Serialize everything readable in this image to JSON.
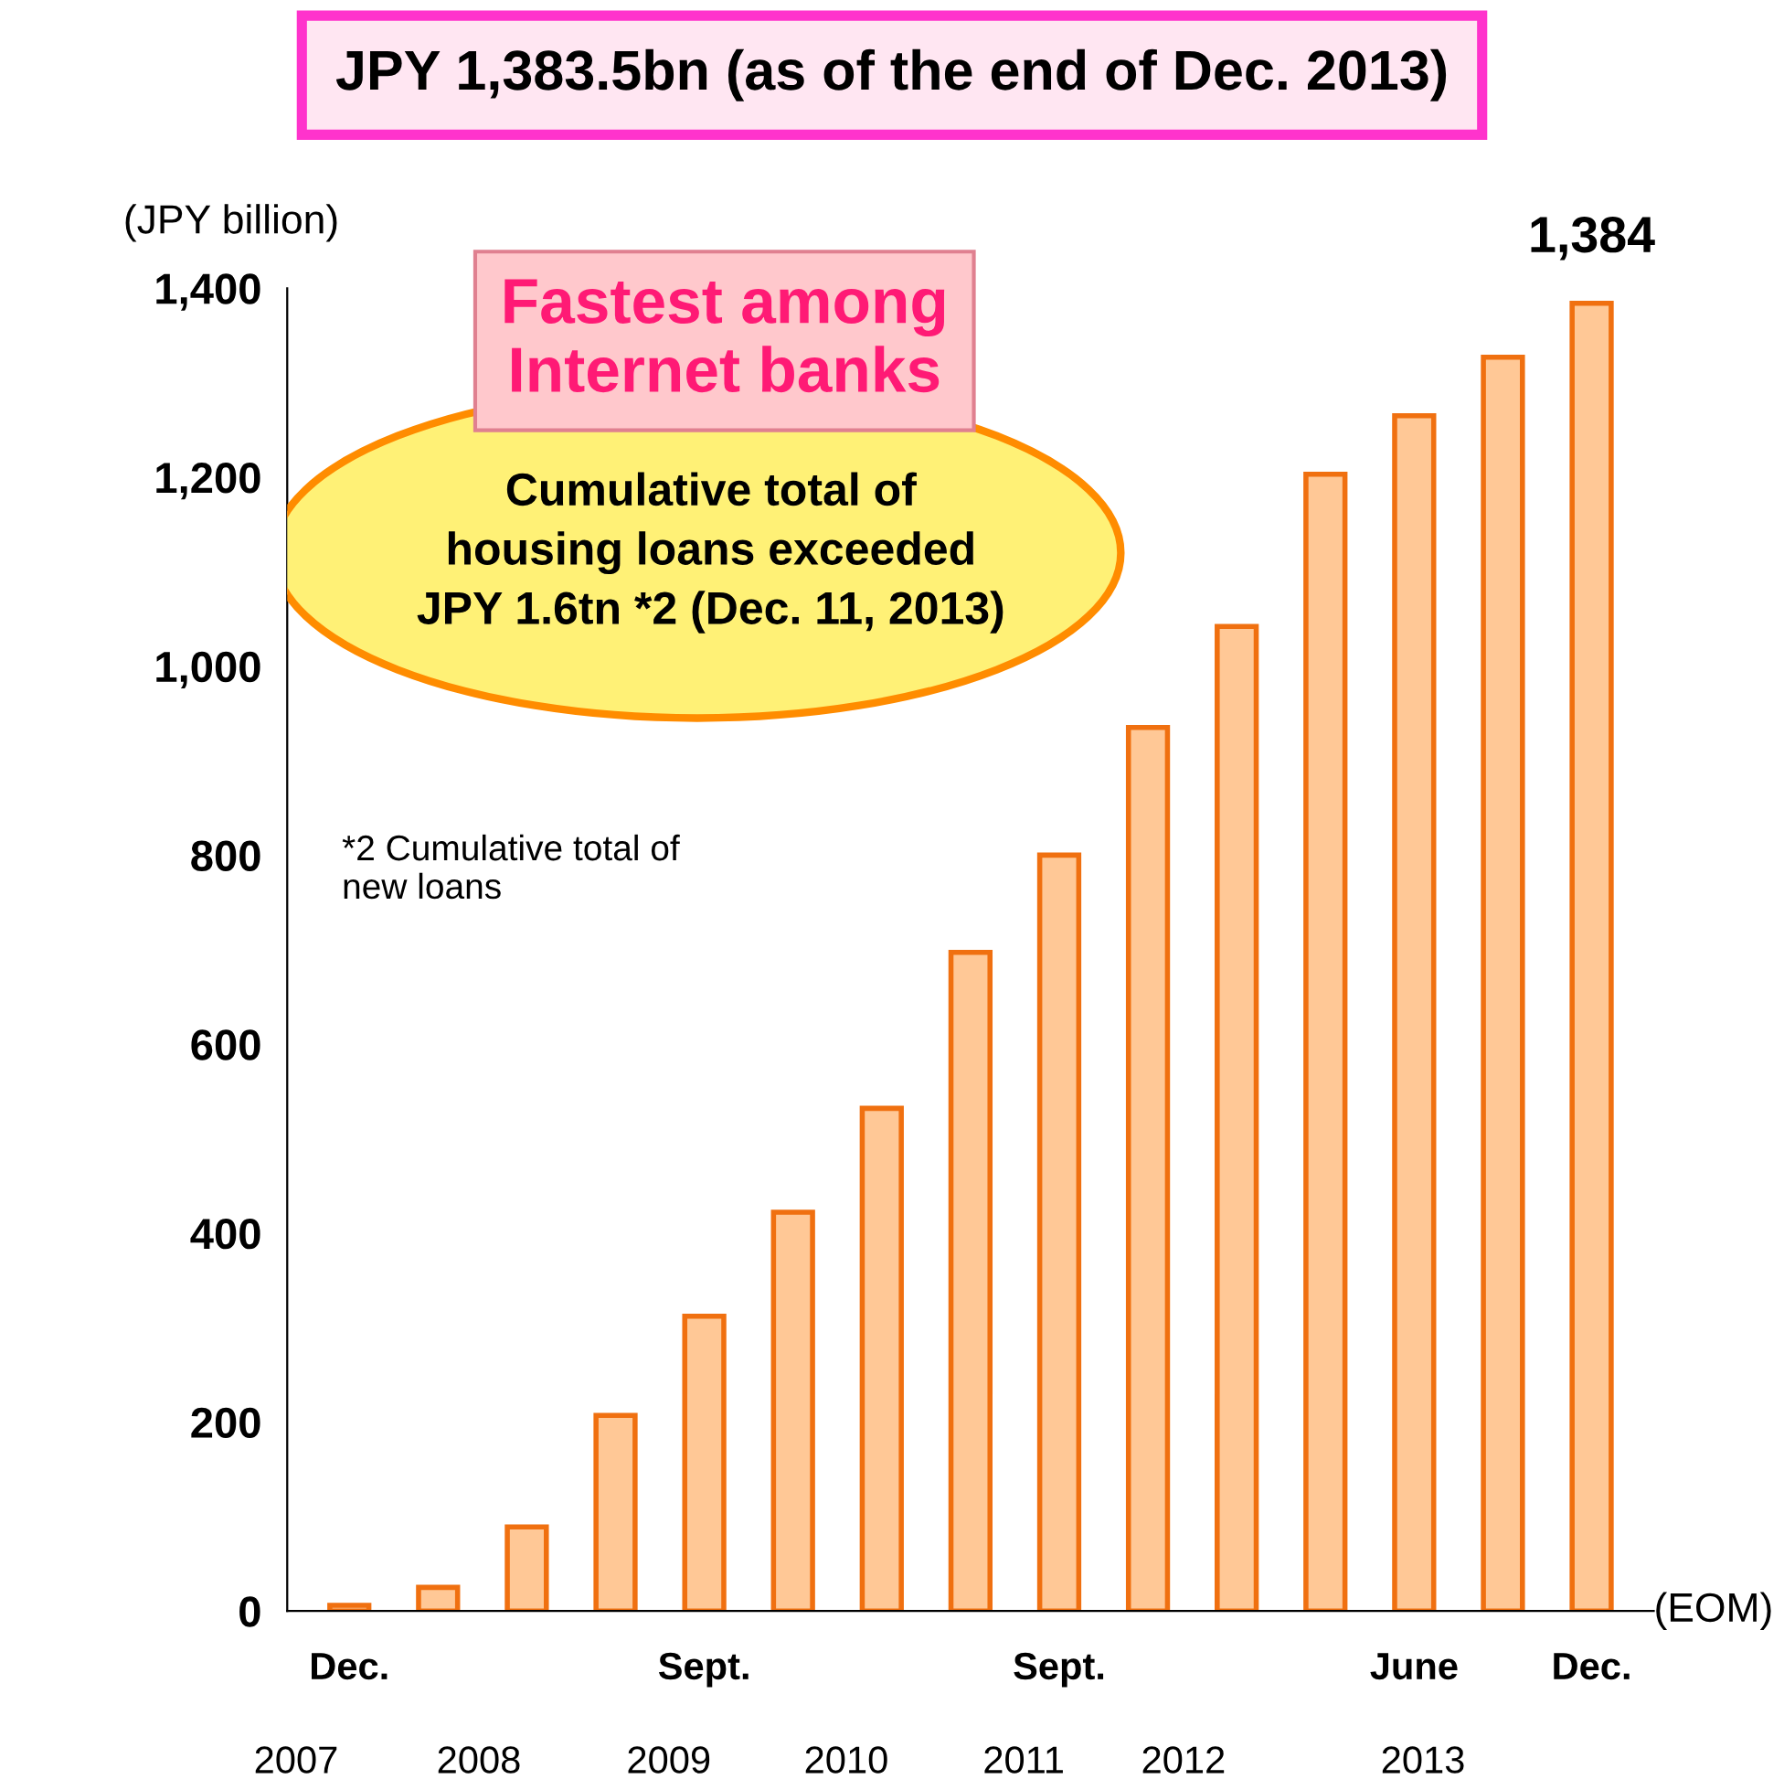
{
  "chart_data": {
    "type": "bar",
    "title": "JPY 1,383.5bn (as of the end of Dec. 2013)",
    "ylabel": "(JPY billion)",
    "xlabel": "(EOM)",
    "categories": [
      "Dec.",
      null,
      null,
      null,
      "Sept.",
      null,
      null,
      null,
      "Sept.",
      null,
      null,
      null,
      "June",
      null,
      "Dec."
    ],
    "values": [
      6,
      25,
      89,
      207,
      312,
      422,
      532,
      697,
      800,
      935,
      1042,
      1203,
      1265,
      1327,
      1384
    ],
    "value_labels": [
      null,
      null,
      null,
      null,
      null,
      null,
      null,
      null,
      null,
      null,
      null,
      null,
      null,
      null,
      "1,384"
    ],
    "color": "#ffc896",
    "ylim": [
      0,
      1400
    ],
    "yticks": [
      {
        "value": 0,
        "label": "0"
      },
      {
        "value": 200,
        "label": "200"
      },
      {
        "value": 400,
        "label": "400"
      },
      {
        "value": 600,
        "label": "600"
      },
      {
        "value": 800,
        "label": "800"
      },
      {
        "value": 1000,
        "label": "1,000"
      },
      {
        "value": 1200,
        "label": "1,200"
      },
      {
        "value": 1400,
        "label": "1,400"
      }
    ],
    "grid": false,
    "annotations": [
      "Fastest among\nInternet banks",
      "Cumulative total of\nhousing loans exceeded\nJPY 1.6tn *2 (Dec. 11, 2013)",
      "*2 Cumulative total of\nnew loans",
      "2007",
      "2008",
      "2009",
      "2010",
      "2011",
      "2012",
      "2013"
    ]
  }
}
